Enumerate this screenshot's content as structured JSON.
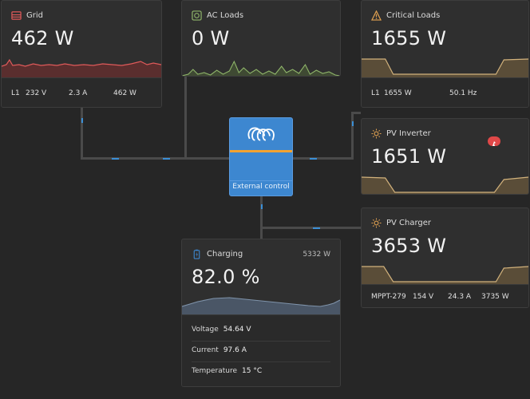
{
  "grid": {
    "title": "Grid",
    "power": "462 W",
    "phase": "L1",
    "voltage": "232 V",
    "current": "2.3 A",
    "phase_power": "462 W",
    "color": "#e05a5a"
  },
  "ac_loads": {
    "title": "AC Loads",
    "power": "0 W",
    "color": "#8fb56a"
  },
  "critical_loads": {
    "title": "Critical Loads",
    "power": "1655 W",
    "phase": "L1",
    "phase_power": "1655 W",
    "frequency": "50.1 Hz",
    "color": "#d2b27c"
  },
  "pv_inverter": {
    "title": "PV Inverter",
    "power": "1651 W",
    "color": "#d2b27c"
  },
  "pv_charger": {
    "title": "PV Charger",
    "power": "3653 W",
    "device": "MPPT-279",
    "voltage": "154 V",
    "current": "24.3 A",
    "device_power": "3735 W",
    "color": "#d2b27c"
  },
  "inverter": {
    "label": "External control",
    "color": "#3d87d0"
  },
  "battery": {
    "title": "Charging",
    "power": "5332 W",
    "soc": "82.0 %",
    "voltage_label": "Voltage",
    "voltage": "54.64 V",
    "current_label": "Current",
    "current": "97.6 A",
    "temperature_label": "Temperature",
    "temperature": "15 °C",
    "color": "#7f93aa"
  }
}
